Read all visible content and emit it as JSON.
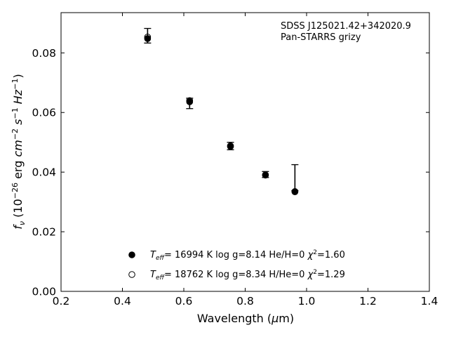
{
  "chart_data": {
    "type": "scatter",
    "xlabel": "Wavelength (μm)",
    "ylabel": "f_ν (10^−26 erg cm^−2 s^−1 Hz^−1)",
    "xlim": [
      0.2,
      1.4
    ],
    "ylim": [
      0.0,
      0.0935
    ],
    "x_ticks": [
      "0.2",
      "0.4",
      "0.6",
      "0.8",
      "1.0",
      "1.2",
      "1.4"
    ],
    "y_ticks": [
      "0.00",
      "0.02",
      "0.04",
      "0.06",
      "0.08"
    ],
    "grid": false,
    "annotation": [
      "SDSS J125021.42+342020.9",
      "Pan-STARRS grizy"
    ],
    "observed": {
      "x": [
        0.482,
        0.619,
        0.752,
        0.866,
        0.962
      ],
      "y_high": [
        0.0882,
        0.0648,
        0.05,
        0.0402,
        0.0425
      ],
      "y_low": [
        0.0833,
        0.0613,
        0.0475,
        0.0382,
        0.0338
      ]
    },
    "series": [
      {
        "name": "Teff= 16994 K  log g=8.14  He/H=0  χ2=1.60",
        "marker": "filled-circle",
        "x": [
          0.482,
          0.619,
          0.752,
          0.866,
          0.962
        ],
        "y": [
          0.0848,
          0.0636,
          0.0486,
          0.039,
          0.0335
        ]
      },
      {
        "name": "Teff= 18762 K  log g=8.34  H/He=0  χ2=1.29",
        "marker": "open-circle",
        "x": [
          0.482,
          0.619,
          0.752,
          0.866,
          0.962
        ],
        "y": [
          0.0853,
          0.064,
          0.0488,
          0.0391,
          0.0334
        ]
      }
    ],
    "legend_position": "lower-center"
  },
  "colors": {
    "marker": "#000000",
    "axis": "#000000",
    "background": "#ffffff"
  }
}
